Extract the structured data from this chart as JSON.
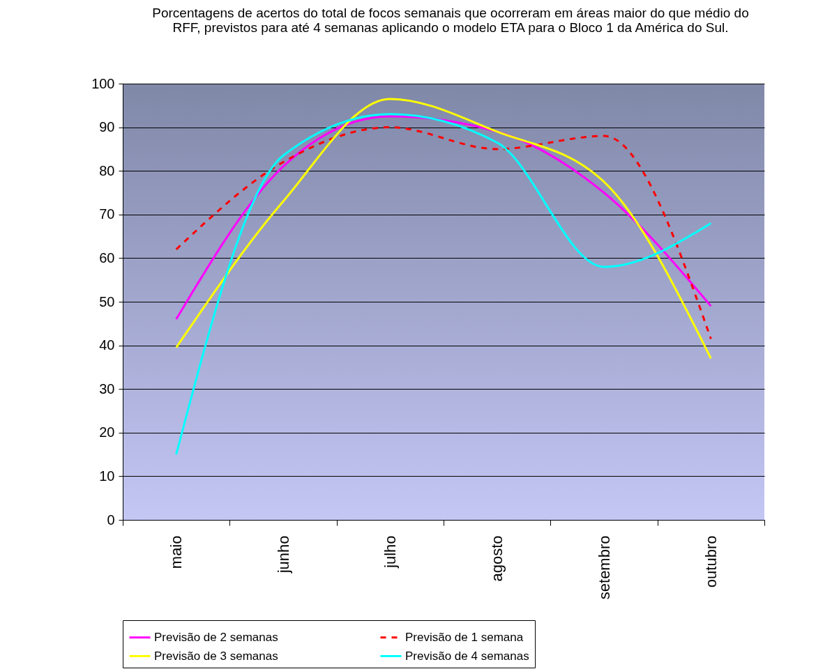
{
  "chart_data": {
    "type": "line",
    "title": "Porcentagens de acertos do total de focos semanais que ocorreram em áreas maior do que médio do RFF, previstos para até 4 semanas aplicando o modelo ETA para o Bloco 1 da América do Sul.",
    "categories": [
      "maio",
      "junho",
      "julho",
      "agosto",
      "setembro",
      "outubro"
    ],
    "series": [
      {
        "name": "Previsão de 2 semanas",
        "color": "#ff00ff",
        "values": [
          46,
          81,
          92.5,
          89,
          75,
          49
        ]
      },
      {
        "name": "Previsão de 1 semana",
        "color": "#ff0000",
        "line_style": "dashed",
        "values": [
          62,
          82,
          90,
          85,
          88,
          41.5
        ]
      },
      {
        "name": "Previsão de 3 semanas",
        "color": "#ffff00",
        "values": [
          39.5,
          73,
          96.5,
          89,
          77.5,
          37
        ]
      },
      {
        "name": "Previsão de 4 semanas",
        "color": "#00ffff",
        "values": [
          15,
          83.5,
          93,
          86.5,
          58,
          68
        ]
      }
    ],
    "ylim": [
      0,
      100
    ],
    "yticks": [
      0,
      10,
      20,
      30,
      40,
      50,
      60,
      70,
      80,
      90,
      100
    ],
    "grid": "y",
    "legend": "bottom",
    "marker": "none",
    "line_style": "solid"
  }
}
